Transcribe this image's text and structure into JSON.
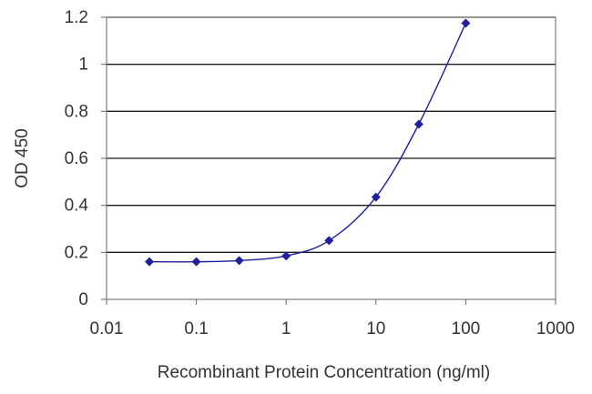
{
  "chart_data": {
    "type": "scatter",
    "xlabel": "Recombinant Protein Concentration (ng/ml)",
    "ylabel": "OD 450",
    "xscale": "log",
    "xlim": [
      0.01,
      1000
    ],
    "ylim": [
      0,
      1.2
    ],
    "x_ticks": [
      0.01,
      0.1,
      1,
      10,
      100,
      1000
    ],
    "x_tick_labels": [
      "0.01",
      "0.1",
      "1",
      "10",
      "100",
      "1000"
    ],
    "y_ticks": [
      0,
      0.2,
      0.4,
      0.6,
      0.8,
      1,
      1.2
    ],
    "y_tick_labels": [
      "0",
      "0.2",
      "0.4",
      "0.6",
      "0.8",
      "1",
      "1.2"
    ],
    "grid": "horizontal",
    "legend": "none",
    "series": [
      {
        "x": [
          0.03,
          0.1,
          0.3,
          1,
          3,
          10,
          30,
          100
        ],
        "y": [
          0.16,
          0.16,
          0.165,
          0.185,
          0.25,
          0.435,
          0.745,
          1.175
        ],
        "fit_curve": true
      }
    ],
    "colors": {
      "series": "#1f1f9f",
      "grid": "#1a1a1a",
      "axis": "#666666"
    }
  }
}
